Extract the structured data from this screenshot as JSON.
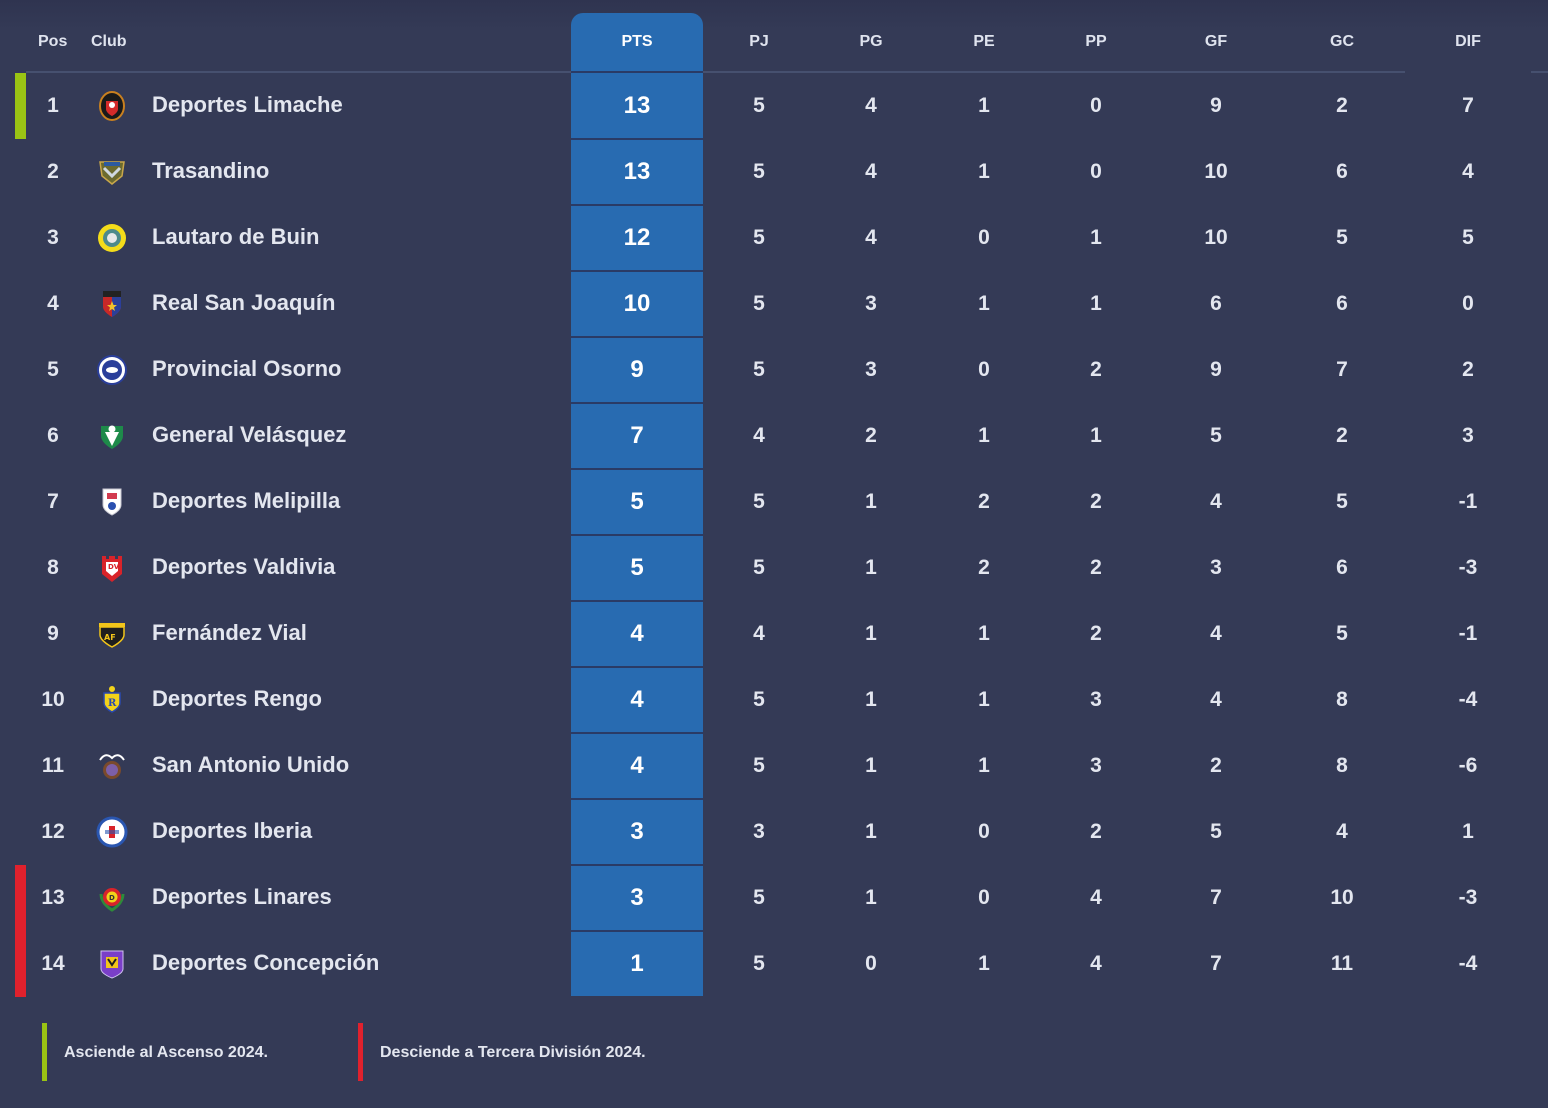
{
  "colors": {
    "background": "#343a56",
    "pts_column": "#286bb1",
    "promotion": "#9ac414",
    "relegation": "#e0212d",
    "text": "#e3e6ef"
  },
  "table": {
    "headers": {
      "pos": "Pos",
      "club": "Club",
      "pts": "PTS",
      "pj": "PJ",
      "pg": "PG",
      "pe": "PE",
      "pp": "PP",
      "gf": "GF",
      "gc": "GC",
      "dif": "DIF"
    },
    "rows": [
      {
        "pos": "1",
        "club": "Deportes Limache",
        "logo": "deportes-limache-crest",
        "pts": "13",
        "pj": "5",
        "pg": "4",
        "pe": "1",
        "pp": "0",
        "gf": "9",
        "gc": "2",
        "dif": "7",
        "zone": "promotion"
      },
      {
        "pos": "2",
        "club": "Trasandino",
        "logo": "trasandino-crest",
        "pts": "13",
        "pj": "5",
        "pg": "4",
        "pe": "1",
        "pp": "0",
        "gf": "10",
        "gc": "6",
        "dif": "4",
        "zone": ""
      },
      {
        "pos": "3",
        "club": "Lautaro de Buin",
        "logo": "lautaro-de-buin-crest",
        "pts": "12",
        "pj": "5",
        "pg": "4",
        "pe": "0",
        "pp": "1",
        "gf": "10",
        "gc": "5",
        "dif": "5",
        "zone": ""
      },
      {
        "pos": "4",
        "club": "Real San Joaquín",
        "logo": "real-san-joaquin-crest",
        "pts": "10",
        "pj": "5",
        "pg": "3",
        "pe": "1",
        "pp": "1",
        "gf": "6",
        "gc": "6",
        "dif": "0",
        "zone": ""
      },
      {
        "pos": "5",
        "club": "Provincial Osorno",
        "logo": "provincial-osorno-crest",
        "pts": "9",
        "pj": "5",
        "pg": "3",
        "pe": "0",
        "pp": "2",
        "gf": "9",
        "gc": "7",
        "dif": "2",
        "zone": ""
      },
      {
        "pos": "6",
        "club": "General Velásquez",
        "logo": "general-velasquez-crest",
        "pts": "7",
        "pj": "4",
        "pg": "2",
        "pe": "1",
        "pp": "1",
        "gf": "5",
        "gc": "2",
        "dif": "3",
        "zone": ""
      },
      {
        "pos": "7",
        "club": "Deportes Melipilla",
        "logo": "deportes-melipilla-crest",
        "pts": "5",
        "pj": "5",
        "pg": "1",
        "pe": "2",
        "pp": "2",
        "gf": "4",
        "gc": "5",
        "dif": "-1",
        "zone": ""
      },
      {
        "pos": "8",
        "club": "Deportes Valdivia",
        "logo": "deportes-valdivia-crest",
        "pts": "5",
        "pj": "5",
        "pg": "1",
        "pe": "2",
        "pp": "2",
        "gf": "3",
        "gc": "6",
        "dif": "-3",
        "zone": ""
      },
      {
        "pos": "9",
        "club": "Fernández Vial",
        "logo": "fernandez-vial-crest",
        "pts": "4",
        "pj": "4",
        "pg": "1",
        "pe": "1",
        "pp": "2",
        "gf": "4",
        "gc": "5",
        "dif": "-1",
        "zone": ""
      },
      {
        "pos": "10",
        "club": "Deportes Rengo",
        "logo": "deportes-rengo-crest",
        "pts": "4",
        "pj": "5",
        "pg": "1",
        "pe": "1",
        "pp": "3",
        "gf": "4",
        "gc": "8",
        "dif": "-4",
        "zone": ""
      },
      {
        "pos": "11",
        "club": "San Antonio Unido",
        "logo": "san-antonio-unido-crest",
        "pts": "4",
        "pj": "5",
        "pg": "1",
        "pe": "1",
        "pp": "3",
        "gf": "2",
        "gc": "8",
        "dif": "-6",
        "zone": ""
      },
      {
        "pos": "12",
        "club": "Deportes Iberia",
        "logo": "deportes-iberia-crest",
        "pts": "3",
        "pj": "3",
        "pg": "1",
        "pe": "0",
        "pp": "2",
        "gf": "5",
        "gc": "4",
        "dif": "1",
        "zone": ""
      },
      {
        "pos": "13",
        "club": "Deportes Linares",
        "logo": "deportes-linares-crest",
        "pts": "3",
        "pj": "5",
        "pg": "1",
        "pe": "0",
        "pp": "4",
        "gf": "7",
        "gc": "10",
        "dif": "-3",
        "zone": "relegation"
      },
      {
        "pos": "14",
        "club": "Deportes Concepción",
        "logo": "deportes-concepcion-crest",
        "pts": "1",
        "pj": "5",
        "pg": "0",
        "pe": "1",
        "pp": "4",
        "gf": "7",
        "gc": "11",
        "dif": "-4",
        "zone": "relegation"
      }
    ]
  },
  "legend": {
    "promotion": "Asciende al Ascenso 2024.",
    "relegation": "Desciende a Tercera División 2024."
  }
}
